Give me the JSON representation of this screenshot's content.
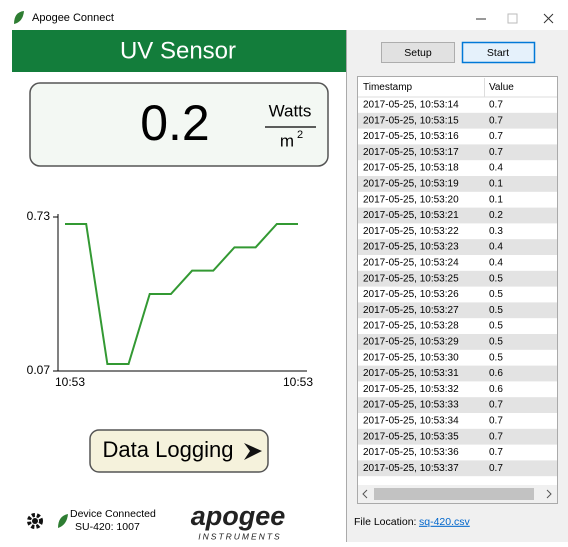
{
  "window": {
    "title": "Apogee Connect"
  },
  "header": {
    "title": "UV Sensor"
  },
  "reading": {
    "value": 0.2,
    "unit_numerator": "Watts",
    "unit_denominator": "m",
    "unit_exponent": "2"
  },
  "chart_data": {
    "type": "line",
    "categories": [
      null,
      null,
      null,
      null,
      null,
      null,
      null,
      null,
      null,
      null,
      null,
      null
    ],
    "x_labels": [
      "10:53",
      "10:53"
    ],
    "series": [
      {
        "name": null,
        "color": "#339933",
        "values": [
          0.7,
          0.7,
          0.1,
          0.1,
          0.4,
          0.4,
          0.5,
          0.5,
          0.6,
          0.6,
          0.7,
          0.7
        ]
      }
    ],
    "ylim": [
      0.07,
      0.73
    ],
    "yticks": [
      0.07,
      0.73
    ]
  },
  "logging_button": "Data Logging",
  "status": {
    "connection": "Device Connected",
    "device": "SU-420: 1007"
  },
  "logo": {
    "name": "apogee",
    "sub": "INSTRUMENTS"
  },
  "buttons": {
    "setup": "Setup",
    "start": "Start"
  },
  "table": {
    "columns": [
      "Timestamp",
      "Value"
    ],
    "rows": [
      [
        "2017-05-25, 10:53:14",
        0.7
      ],
      [
        "2017-05-25, 10:53:15",
        0.7
      ],
      [
        "2017-05-25, 10:53:16",
        0.7
      ],
      [
        "2017-05-25, 10:53:17",
        0.7
      ],
      [
        "2017-05-25, 10:53:18",
        0.4
      ],
      [
        "2017-05-25, 10:53:19",
        0.1
      ],
      [
        "2017-05-25, 10:53:20",
        0.1
      ],
      [
        "2017-05-25, 10:53:21",
        0.2
      ],
      [
        "2017-05-25, 10:53:22",
        0.3
      ],
      [
        "2017-05-25, 10:53:23",
        0.4
      ],
      [
        "2017-05-25, 10:53:24",
        0.4
      ],
      [
        "2017-05-25, 10:53:25",
        0.5
      ],
      [
        "2017-05-25, 10:53:26",
        0.5
      ],
      [
        "2017-05-25, 10:53:27",
        0.5
      ],
      [
        "2017-05-25, 10:53:28",
        0.5
      ],
      [
        "2017-05-25, 10:53:29",
        0.5
      ],
      [
        "2017-05-25, 10:53:30",
        0.5
      ],
      [
        "2017-05-25, 10:53:31",
        0.6
      ],
      [
        "2017-05-25, 10:53:32",
        0.6
      ],
      [
        "2017-05-25, 10:53:33",
        0.7
      ],
      [
        "2017-05-25, 10:53:34",
        0.7
      ],
      [
        "2017-05-25, 10:53:35",
        0.7
      ],
      [
        "2017-05-25, 10:53:36",
        0.7
      ],
      [
        "2017-05-25, 10:53:37",
        0.7
      ]
    ]
  },
  "file": {
    "label": "File Location:",
    "link": "sq-420.csv"
  }
}
